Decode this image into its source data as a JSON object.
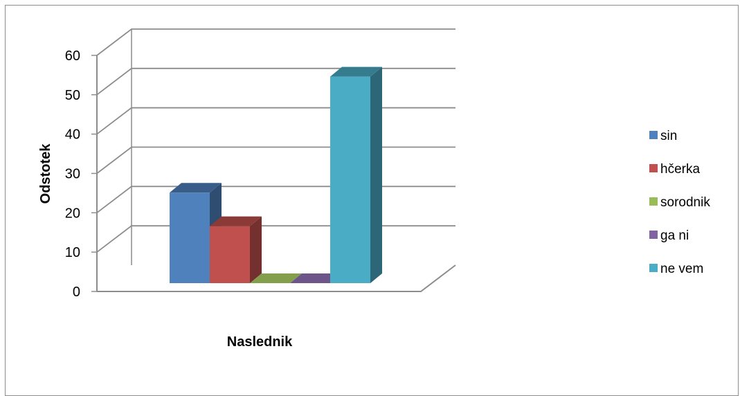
{
  "chart_data": {
    "type": "bar",
    "three_d": true,
    "categories": [
      "sin",
      "hčerka",
      "sorodnik",
      "ga ni",
      "ne vem"
    ],
    "series": [
      {
        "name": "sin",
        "value": 23,
        "color": "#4F81BD"
      },
      {
        "name": "hčerka",
        "value": 14.5,
        "color": "#C0504D"
      },
      {
        "name": "sorodnik",
        "value": 0,
        "color": "#9BBB59"
      },
      {
        "name": "ga ni",
        "value": 0,
        "color": "#8064A2"
      },
      {
        "name": "ne vem",
        "value": 52.5,
        "color": "#4BACC6"
      }
    ],
    "xlabel": "Naslednik",
    "ylabel": "Odstotek",
    "yticks": [
      "0",
      "10",
      "20",
      "30",
      "40",
      "50",
      "60"
    ],
    "ylim": [
      0,
      60
    ],
    "grid": true,
    "legend_position": "right"
  }
}
